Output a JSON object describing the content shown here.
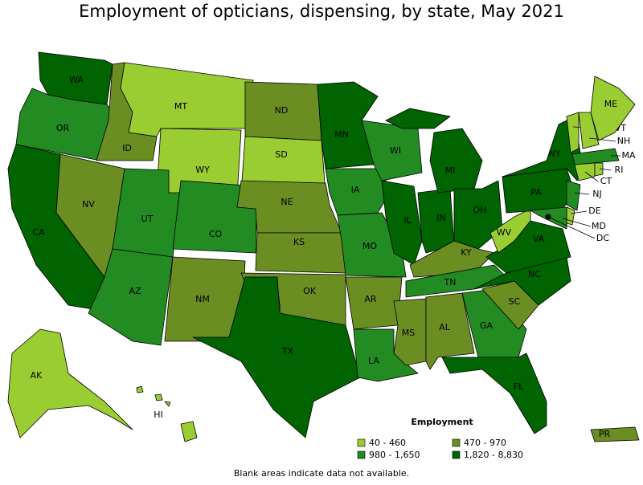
{
  "title": "Employment of opticians, dispensing, by state, May 2021",
  "legend": {
    "title": "Employment",
    "items": [
      {
        "label": "40 - 460",
        "color": "#9acd32"
      },
      {
        "label": "470 - 970",
        "color": "#6b8e23"
      },
      {
        "label": "980 - 1,650",
        "color": "#228b22"
      },
      {
        "label": "1,820 - 8,830",
        "color": "#006400"
      }
    ]
  },
  "states": [
    {
      "abbr": "WA",
      "class": "1,820 - 8,830"
    },
    {
      "abbr": "OR",
      "class": "980 - 1,650"
    },
    {
      "abbr": "CA",
      "class": "1,820 - 8,830"
    },
    {
      "abbr": "ID",
      "class": "470 - 970"
    },
    {
      "abbr": "NV",
      "class": "470 - 970"
    },
    {
      "abbr": "MT",
      "class": "40 - 460"
    },
    {
      "abbr": "WY",
      "class": "40 - 460"
    },
    {
      "abbr": "UT",
      "class": "980 - 1,650"
    },
    {
      "abbr": "CO",
      "class": "980 - 1,650"
    },
    {
      "abbr": "AZ",
      "class": "980 - 1,650"
    },
    {
      "abbr": "NM",
      "class": "470 - 970"
    },
    {
      "abbr": "ND",
      "class": "470 - 970"
    },
    {
      "abbr": "SD",
      "class": "40 - 460"
    },
    {
      "abbr": "NE",
      "class": "470 - 970"
    },
    {
      "abbr": "KS",
      "class": "470 - 970"
    },
    {
      "abbr": "OK",
      "class": "470 - 970"
    },
    {
      "abbr": "TX",
      "class": "1,820 - 8,830"
    },
    {
      "abbr": "MN",
      "class": "1,820 - 8,830"
    },
    {
      "abbr": "IA",
      "class": "980 - 1,650"
    },
    {
      "abbr": "MO",
      "class": "980 - 1,650"
    },
    {
      "abbr": "AR",
      "class": "470 - 970"
    },
    {
      "abbr": "LA",
      "class": "980 - 1,650"
    },
    {
      "abbr": "WI",
      "class": "980 - 1,650"
    },
    {
      "abbr": "IL",
      "class": "1,820 - 8,830"
    },
    {
      "abbr": "IN",
      "class": "1,820 - 8,830"
    },
    {
      "abbr": "MI",
      "class": "1,820 - 8,830"
    },
    {
      "abbr": "OH",
      "class": "1,820 - 8,830"
    },
    {
      "abbr": "KY",
      "class": "470 - 970"
    },
    {
      "abbr": "TN",
      "class": "980 - 1,650"
    },
    {
      "abbr": "MS",
      "class": "470 - 970"
    },
    {
      "abbr": "AL",
      "class": "470 - 970"
    },
    {
      "abbr": "GA",
      "class": "980 - 1,650"
    },
    {
      "abbr": "FL",
      "class": "1,820 - 8,830"
    },
    {
      "abbr": "SC",
      "class": "470 - 970"
    },
    {
      "abbr": "NC",
      "class": "1,820 - 8,830"
    },
    {
      "abbr": "VA",
      "class": "1,820 - 8,830"
    },
    {
      "abbr": "WV",
      "class": "40 - 460"
    },
    {
      "abbr": "PA",
      "class": "1,820 - 8,830"
    },
    {
      "abbr": "NY",
      "class": "1,820 - 8,830"
    },
    {
      "abbr": "NJ",
      "class": "980 - 1,650"
    },
    {
      "abbr": "DE",
      "class": "40 - 460"
    },
    {
      "abbr": "MD",
      "class": "980 - 1,650"
    },
    {
      "abbr": "VT",
      "class": "40 - 460"
    },
    {
      "abbr": "NH",
      "class": "40 - 460"
    },
    {
      "abbr": "ME",
      "class": "40 - 460"
    },
    {
      "abbr": "MA",
      "class": "980 - 1,650"
    },
    {
      "abbr": "CT",
      "class": "40 - 460"
    },
    {
      "abbr": "RI",
      "class": "40 - 460"
    },
    {
      "abbr": "AK",
      "class": "40 - 460"
    },
    {
      "abbr": "HI",
      "class": "40 - 460"
    },
    {
      "abbr": "PR",
      "class": "470 - 970"
    },
    {
      "abbr": "DC",
      "class": "1,820 - 8,830"
    }
  ],
  "note": "Blank areas indicate data not available."
}
